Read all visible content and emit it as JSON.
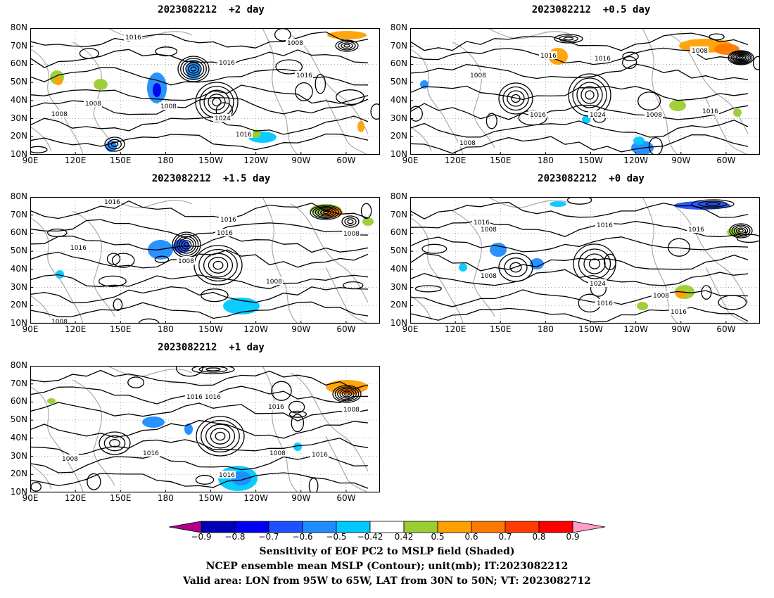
{
  "panels": [
    {
      "title": "2023082212  +2 day",
      "contour_labels": [
        "1016",
        "1008",
        "1016",
        "1016",
        "1008",
        "1008",
        "1008",
        "1024",
        "1016"
      ]
    },
    {
      "title": "2023082212  +0.5 day",
      "contour_labels": [
        "1016",
        "1016",
        "1008",
        "1008",
        "1016",
        "1024",
        "1008",
        "1016",
        "1008"
      ]
    },
    {
      "title": "2023082212  +1.5 day",
      "contour_labels": [
        "1016",
        "1016",
        "1016",
        "1008",
        "1008",
        "1016",
        "1008",
        "1008"
      ]
    },
    {
      "title": "2023082212  +0 day",
      "contour_labels": [
        "1016",
        "1008",
        "1016",
        "1016",
        "1008",
        "1024",
        "1016",
        "1008",
        "1016"
      ]
    },
    {
      "title": "2023082212  +1 day",
      "contour_labels": [
        "1016",
        "1016",
        "1016",
        "1008",
        "1016",
        "1008",
        "1016",
        "1008",
        "1016"
      ]
    }
  ],
  "axes": {
    "lat_labels": [
      "80N",
      "70N",
      "60N",
      "50N",
      "40N",
      "30N",
      "20N",
      "10N"
    ],
    "lon_labels": [
      "90E",
      "120E",
      "150E",
      "180",
      "150W",
      "120W",
      "90W",
      "60W"
    ]
  },
  "colorbar": {
    "labels": [
      "−0.9",
      "−0.8",
      "−0.7",
      "−0.6",
      "−0.5",
      "−0.42",
      "0.42",
      "0.5",
      "0.6",
      "0.7",
      "0.8",
      "0.9"
    ],
    "colors": [
      "#b0008a",
      "#0000b4",
      "#0000f0",
      "#1e50ff",
      "#1e8cff",
      "#00c8ff",
      "#ffffff",
      "#9acd32",
      "#ffa000",
      "#ff7800",
      "#ff3c00",
      "#ff0000",
      "#ff9ec8"
    ]
  },
  "caption": {
    "line1": "Sensitivity of EOF PC2 to MSLP field (Shaded)",
    "line2": "NCEP ensemble mean MSLP (Contour); unit(mb); IT:2023082212",
    "line3": "Valid area: LON from 95W to 65W, LAT from 30N to 50N; VT: 2023082712"
  }
}
